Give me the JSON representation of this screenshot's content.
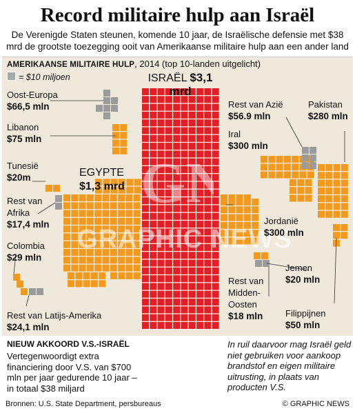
{
  "title": "Record militaire hulp aan Israël",
  "subtitle": "De Verenigde Staten steunen, komende 10 jaar, de Israëlische defensie met $38 mrd de grootste toezegging ooit van Amerikaanse militaire hulp aan een ander land",
  "chart_head": {
    "caps": "Amerikaanse militaire hulp",
    "rest": ", 2014 (top 10-landen uitgelicht)"
  },
  "legend": "= $10 miljoen",
  "colors": {
    "israel": "#e41e26",
    "top10": "#f39a1e",
    "rest": "#9b9b9b",
    "deal": "#8a1015",
    "panel": "#efe9dc"
  },
  "watermark": "GRAPHIC NEWS",
  "chart_data": {
    "type": "waffle",
    "unit": "$10 miljoen",
    "items": [
      {
        "name": "ISRAËL",
        "value_label": "$3,1 mrd",
        "squares": 310,
        "group": "top10"
      },
      {
        "name": "EGYPTE",
        "value_label": "$1,3 mrd",
        "squares": 130,
        "group": "top10"
      },
      {
        "name": "Pakistan",
        "value_label": "$280 mln",
        "squares": 28,
        "group": "top10"
      },
      {
        "name": "Iral",
        "value_label": "$300 mln",
        "squares": 30,
        "group": "top10"
      },
      {
        "name": "Jordanië",
        "value_label": "$300 mln",
        "squares": 30,
        "group": "top10"
      },
      {
        "name": "Libanon",
        "value_label": "$75 mln",
        "squares": 8,
        "group": "top10"
      },
      {
        "name": "Filippijnen",
        "value_label": "$50 mln",
        "squares": 5,
        "group": "top10"
      },
      {
        "name": "Colombia",
        "value_label": "$29 mln",
        "squares": 3,
        "group": "top10"
      },
      {
        "name": "Tunesië",
        "value_label": "$20m",
        "squares": 2,
        "group": "top10"
      },
      {
        "name": "Jemen",
        "value_label": "$20 mln",
        "squares": 2,
        "group": "top10"
      },
      {
        "name": "Oost-Europa",
        "value_label": "$66,5 mln",
        "squares": 7,
        "group": "rest"
      },
      {
        "name": "Rest van Azië",
        "value_label": "$56.9 mln",
        "squares": 6,
        "group": "rest"
      },
      {
        "name": "Rest van Afrika",
        "value_label": "$17,4 mln",
        "squares": 2,
        "group": "rest"
      },
      {
        "name": "Rest van Midden-Oosten",
        "value_label": "$18 mln",
        "squares": 2,
        "group": "rest"
      },
      {
        "name": "Rest van Latijs-Amerika",
        "value_label": "$24,1 mln",
        "squares": 2,
        "group": "rest"
      }
    ],
    "deal_squares": 70
  },
  "labels": {
    "oost_europa": {
      "name": "Oost-Europa",
      "value": "$66,5 mln"
    },
    "libanon": {
      "name": "Libanon",
      "value": "$75 mln"
    },
    "tunesie": {
      "name": "Tunesië",
      "value": "$20m"
    },
    "rest_afrika": {
      "name1": "Rest van",
      "name2": "Afrika",
      "value": "$17,4 mln"
    },
    "colombia": {
      "name": "Colombia",
      "value": "$29 mln"
    },
    "rest_latam": {
      "name": "Rest van Latijs-Amerika",
      "value": "$24,1 mln"
    },
    "egypte": {
      "name": "EGYPTE",
      "value": "$1,3 mrd"
    },
    "israel": {
      "name": "ISRAËL",
      "value": "$3,1 mrd"
    },
    "rest_azie": {
      "name": "Rest van Azië",
      "value": "$56.9 mln"
    },
    "pakistan": {
      "name": "Pakistan",
      "value": "$280 mln"
    },
    "iral": {
      "name": "Iral",
      "value": "$300 mln"
    },
    "jordanie": {
      "name": "Jordanië",
      "value": "$300 mln"
    },
    "jemen": {
      "name": "Jemen",
      "value": "$20 mln"
    },
    "rest_mo": {
      "name1": "Rest van",
      "name2": "Midden-",
      "name3": "Oosten",
      "value": "$18 mln"
    },
    "filippijnen": {
      "name": "Filippijnen",
      "value": "$50 mln"
    }
  },
  "deal": {
    "title": "Nieuw akkoord V.S.-Israël",
    "text": "Vertegenwoordigt extra financiering door V.S. van $700 mln per jaar gedurende 10 jaar – in totaal $38 miljard",
    "right": "In ruil daarvoor mag Israël geld niet gebruiken voor aankoop brandstof en eigen militaire uitrusting, in plaats van producten V.S."
  },
  "sources": "Bronnen: U.S. State Department, persbureaus",
  "credit": "© GRAPHIC NEWS"
}
